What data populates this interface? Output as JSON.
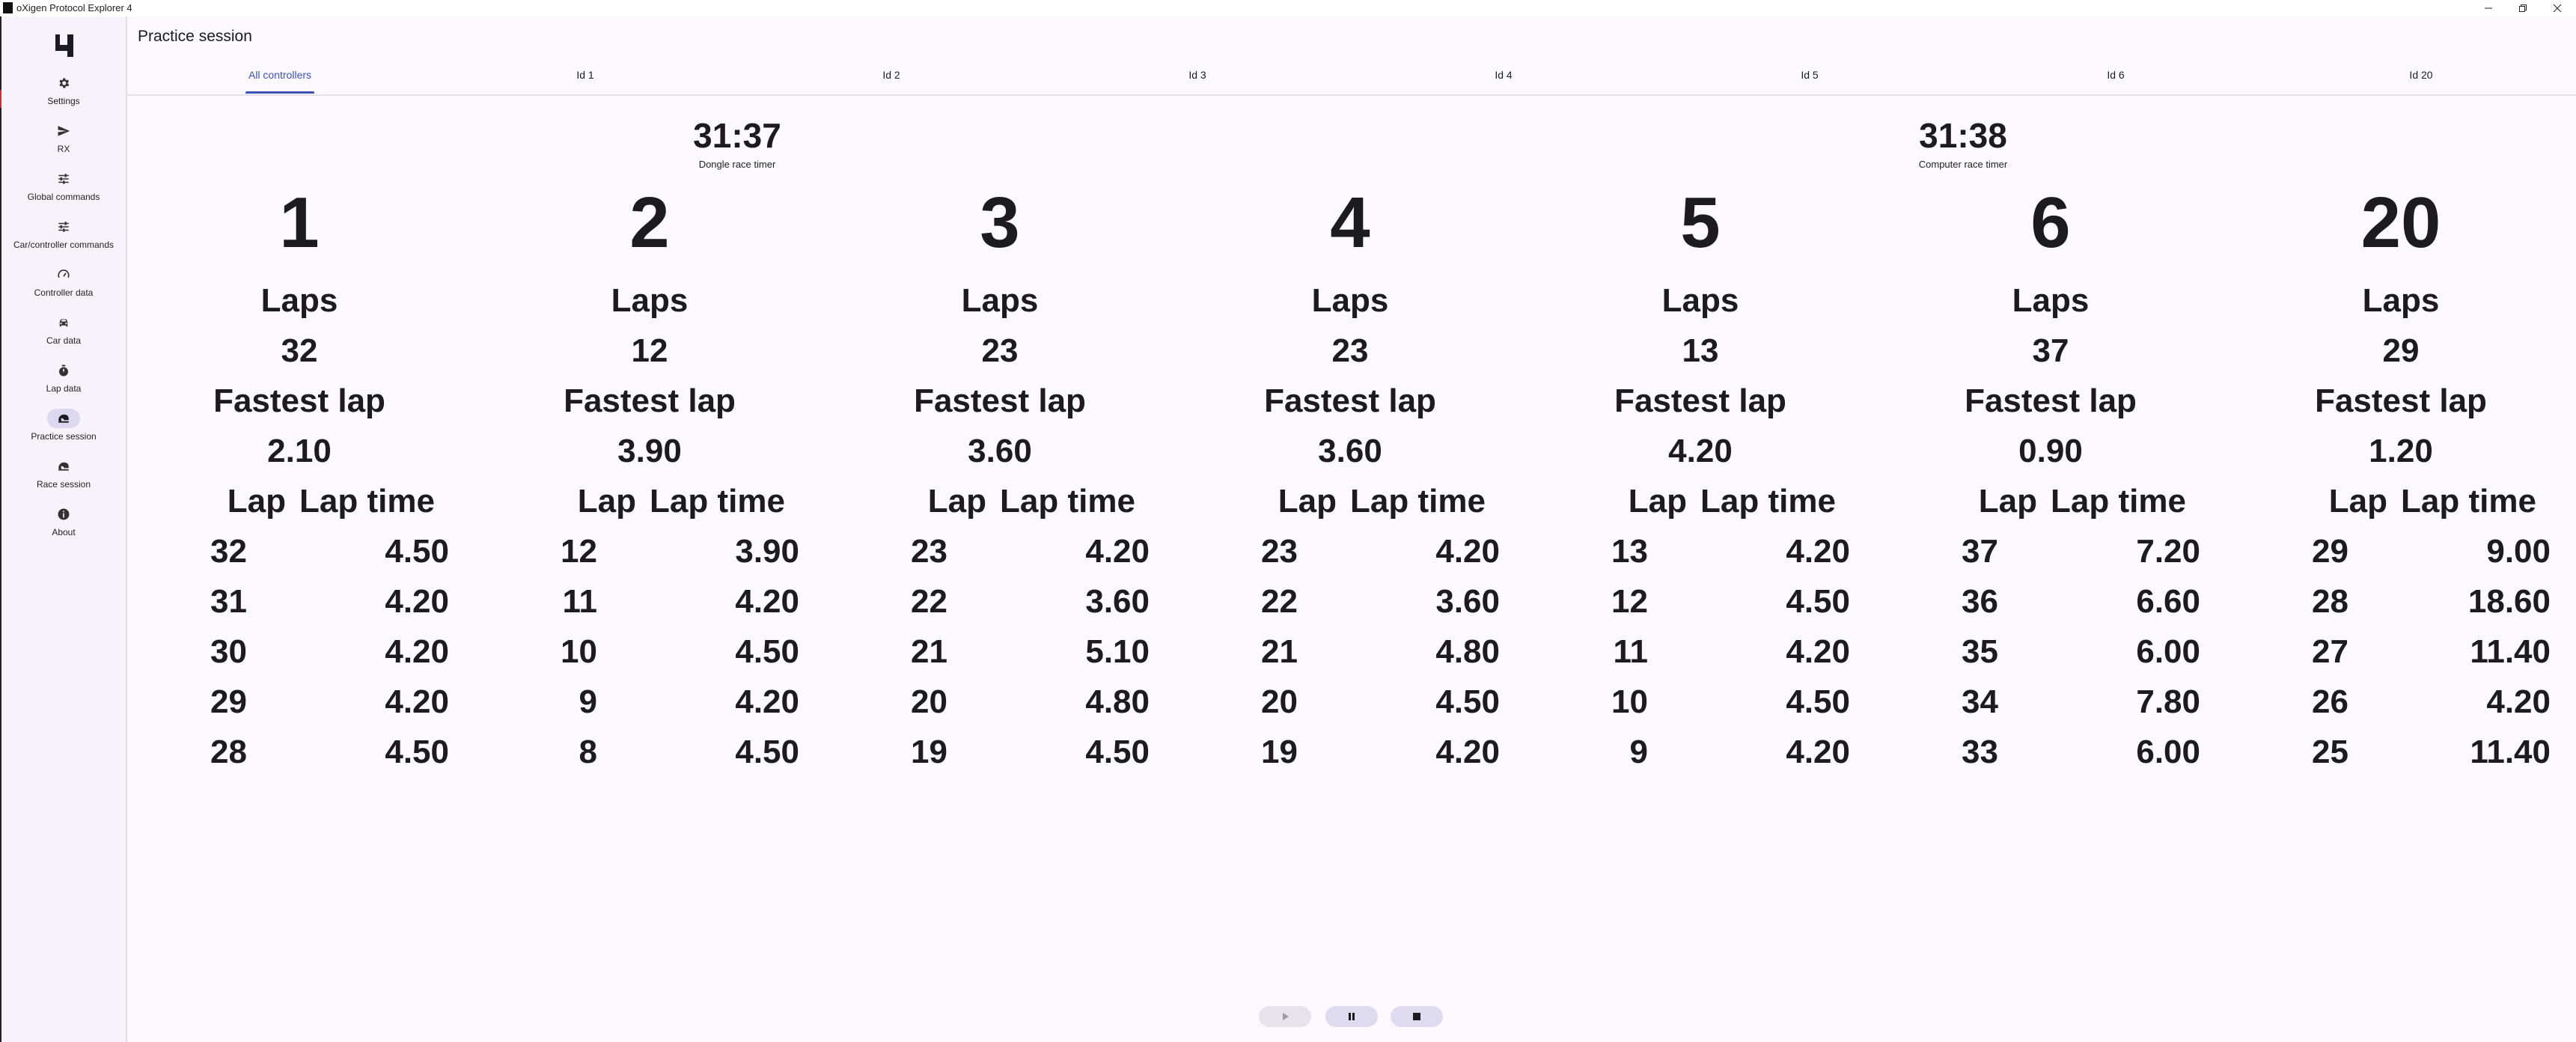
{
  "window": {
    "title": "oXigen Protocol Explorer 4"
  },
  "nav": {
    "items": [
      {
        "label": "Settings",
        "icon": "gear-icon"
      },
      {
        "label": "RX",
        "icon": "send-icon"
      },
      {
        "label": "Global commands",
        "icon": "sliders-icon"
      },
      {
        "label": "Car/controller commands",
        "icon": "sliders-icon"
      },
      {
        "label": "Controller data",
        "icon": "speedometer-icon"
      },
      {
        "label": "Car data",
        "icon": "car-icon"
      },
      {
        "label": "Lap data",
        "icon": "stopwatch-icon"
      },
      {
        "label": "Practice session",
        "icon": "helmet-icon",
        "active": true
      },
      {
        "label": "Race session",
        "icon": "helmet-icon"
      },
      {
        "label": "About",
        "icon": "info-icon"
      }
    ]
  },
  "page": {
    "title": "Practice session"
  },
  "tabs": [
    {
      "label": "All controllers",
      "active": true
    },
    {
      "label": "Id 1"
    },
    {
      "label": "Id 2"
    },
    {
      "label": "Id 3"
    },
    {
      "label": "Id 4"
    },
    {
      "label": "Id 5"
    },
    {
      "label": "Id 6"
    },
    {
      "label": "Id 20"
    }
  ],
  "timers": {
    "dongle": {
      "value": "31:37",
      "label": "Dongle race timer"
    },
    "computer": {
      "value": "31:38",
      "label": "Computer race timer"
    }
  },
  "labels": {
    "laps": "Laps",
    "fastest_lap": "Fastest lap",
    "lap": "Lap",
    "lap_time": "Lap time"
  },
  "controllers": [
    {
      "id": "1",
      "laps": "32",
      "fastest": "2.10",
      "rows": [
        [
          "32",
          "4.50"
        ],
        [
          "31",
          "4.20"
        ],
        [
          "30",
          "4.20"
        ],
        [
          "29",
          "4.20"
        ],
        [
          "28",
          "4.50"
        ]
      ]
    },
    {
      "id": "2",
      "laps": "12",
      "fastest": "3.90",
      "rows": [
        [
          "12",
          "3.90"
        ],
        [
          "11",
          "4.20"
        ],
        [
          "10",
          "4.50"
        ],
        [
          "9",
          "4.20"
        ],
        [
          "8",
          "4.50"
        ]
      ]
    },
    {
      "id": "3",
      "laps": "23",
      "fastest": "3.60",
      "rows": [
        [
          "23",
          "4.20"
        ],
        [
          "22",
          "3.60"
        ],
        [
          "21",
          "5.10"
        ],
        [
          "20",
          "4.80"
        ],
        [
          "19",
          "4.50"
        ]
      ]
    },
    {
      "id": "4",
      "laps": "23",
      "fastest": "3.60",
      "rows": [
        [
          "23",
          "4.20"
        ],
        [
          "22",
          "3.60"
        ],
        [
          "21",
          "4.80"
        ],
        [
          "20",
          "4.50"
        ],
        [
          "19",
          "4.20"
        ]
      ]
    },
    {
      "id": "5",
      "laps": "13",
      "fastest": "4.20",
      "rows": [
        [
          "13",
          "4.20"
        ],
        [
          "12",
          "4.50"
        ],
        [
          "11",
          "4.20"
        ],
        [
          "10",
          "4.50"
        ],
        [
          "9",
          "4.20"
        ]
      ]
    },
    {
      "id": "6",
      "laps": "37",
      "fastest": "0.90",
      "rows": [
        [
          "37",
          "7.20"
        ],
        [
          "36",
          "6.60"
        ],
        [
          "35",
          "6.00"
        ],
        [
          "34",
          "7.80"
        ],
        [
          "33",
          "6.00"
        ]
      ]
    },
    {
      "id": "20",
      "laps": "29",
      "fastest": "1.20",
      "rows": [
        [
          "29",
          "9.00"
        ],
        [
          "28",
          "18.60"
        ],
        [
          "27",
          "11.40"
        ],
        [
          "26",
          "4.20"
        ],
        [
          "25",
          "11.40"
        ]
      ]
    }
  ],
  "playback": {
    "play": {
      "icon": "play-icon",
      "enabled": false
    },
    "pause": {
      "icon": "pause-icon",
      "enabled": true
    },
    "stop": {
      "icon": "stop-icon",
      "enabled": true
    }
  },
  "colors": {
    "accent": "#3f51b5",
    "active_pill": "#dcd8f0",
    "background": "#fbf9fd"
  }
}
